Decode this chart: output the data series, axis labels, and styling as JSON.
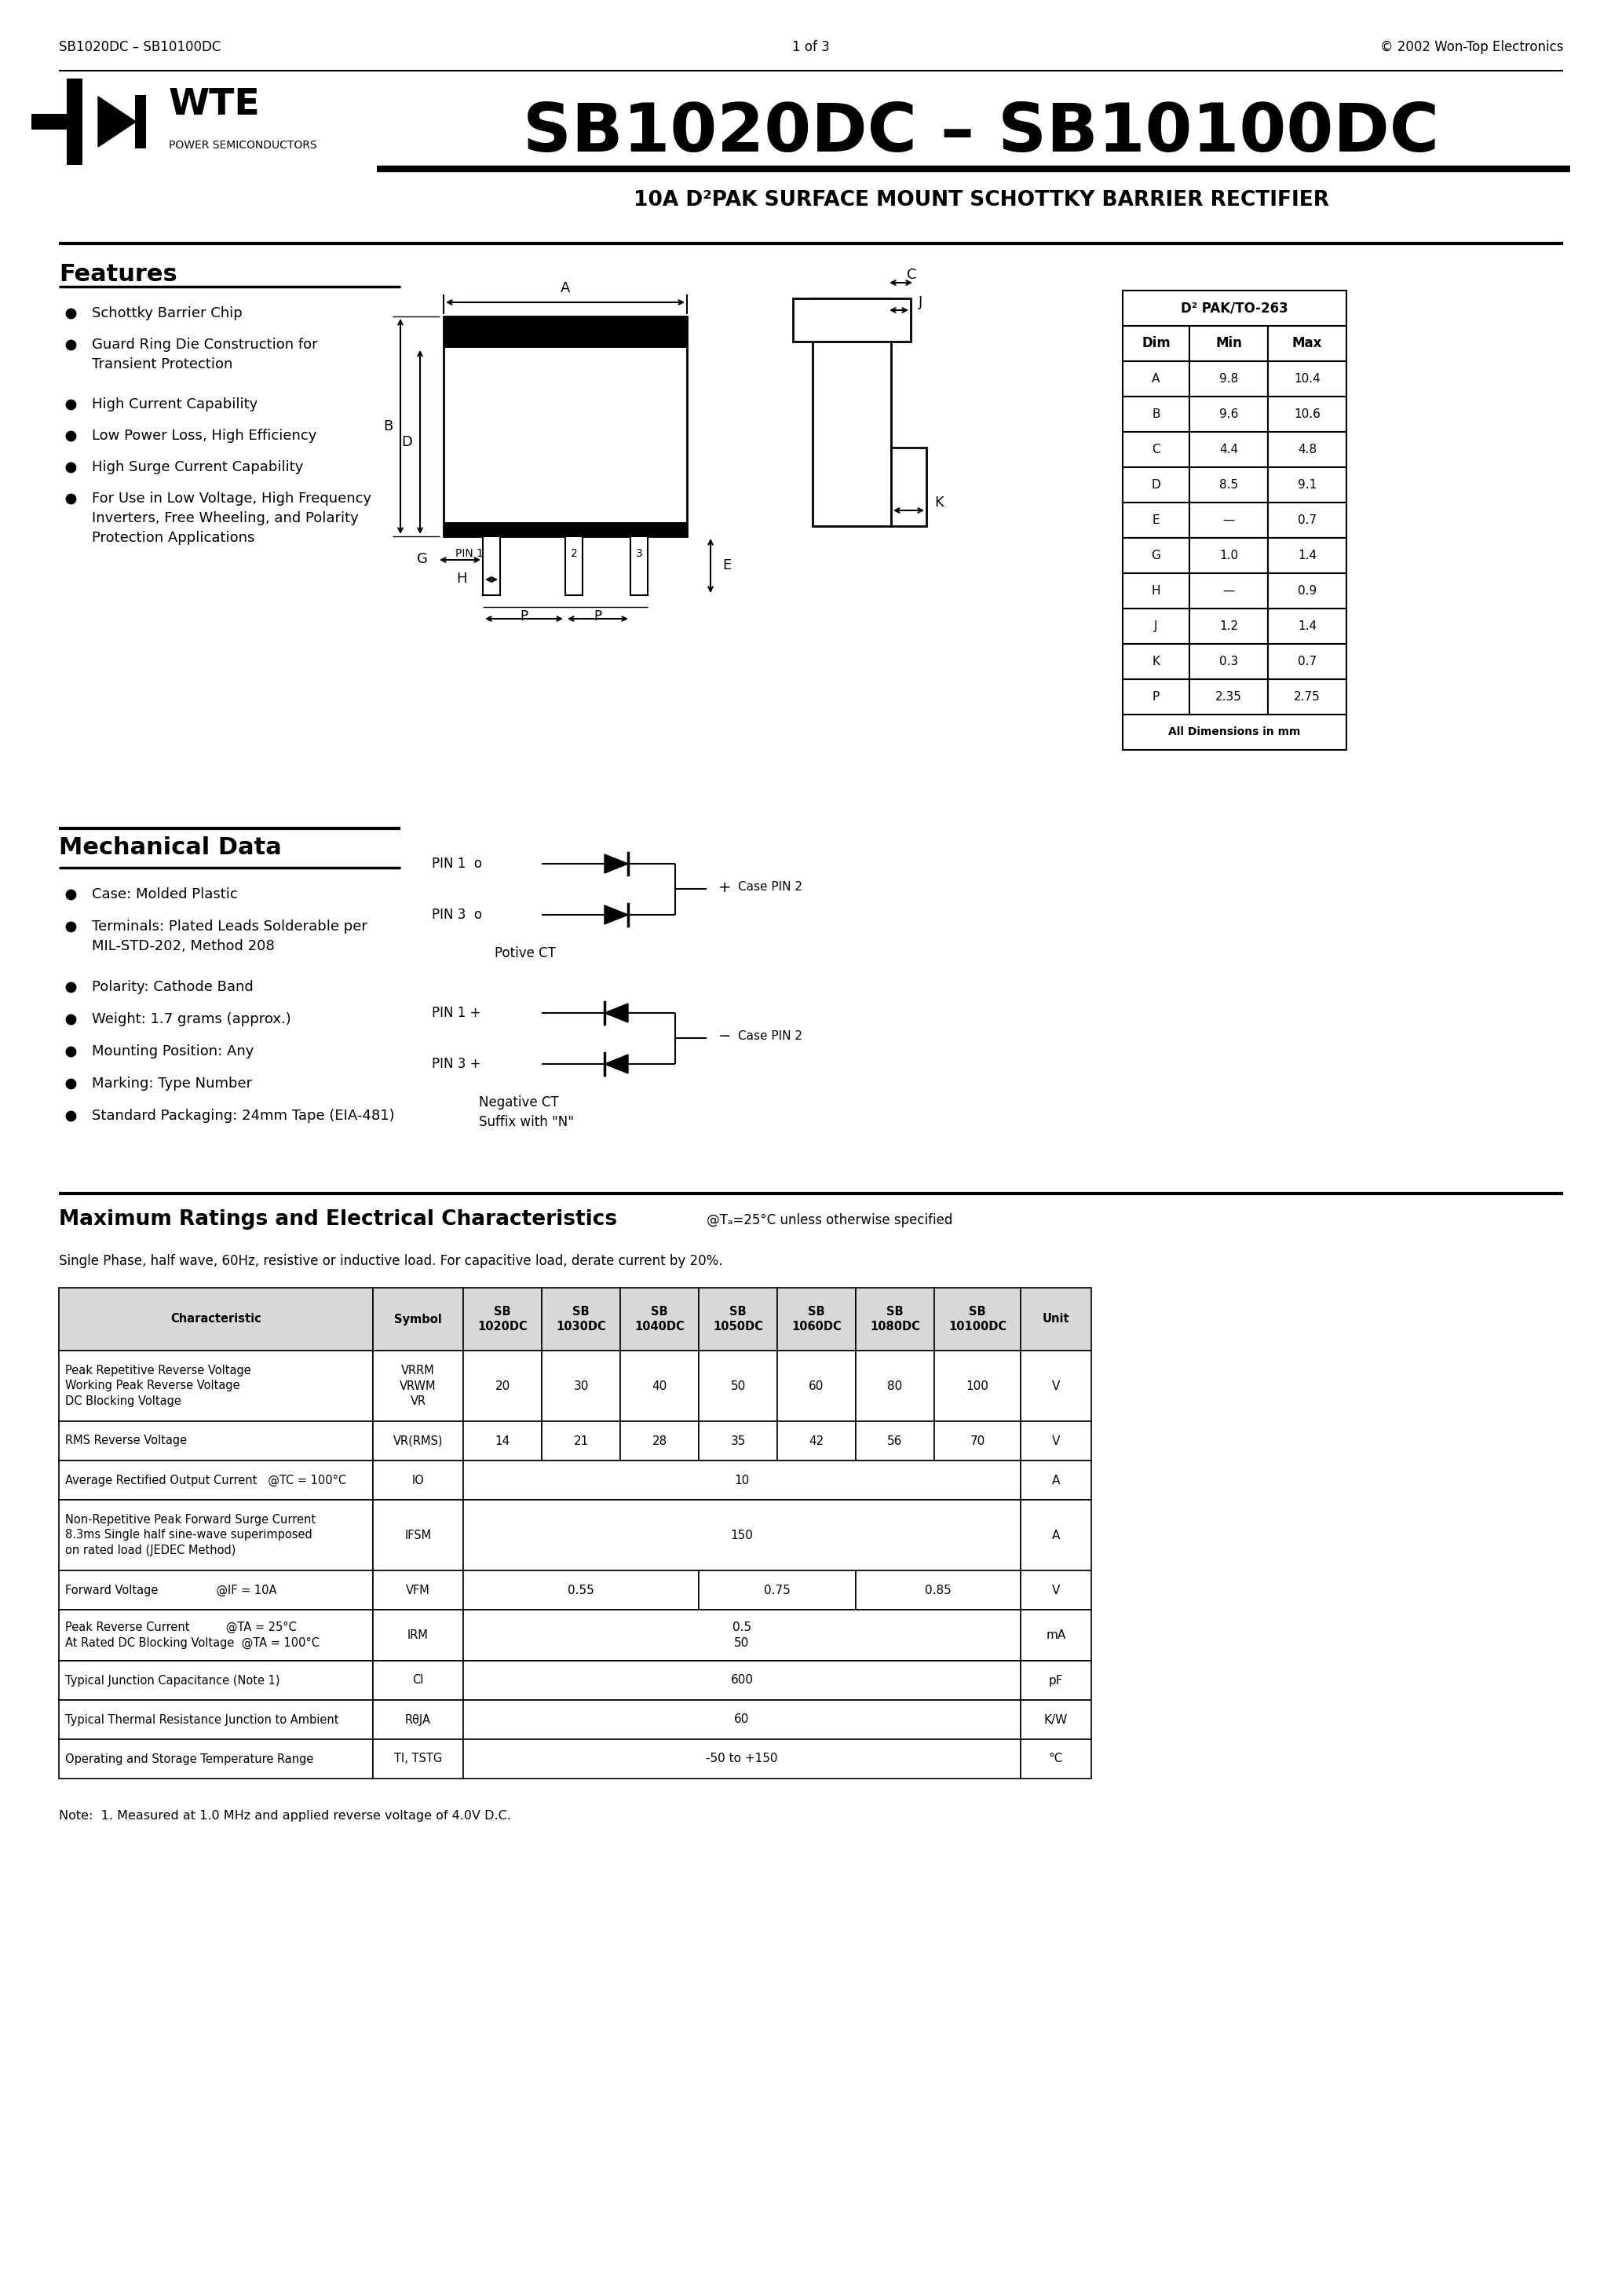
{
  "title": "SB1020DC – SB10100DC",
  "subtitle": "10A D²PAK SURFACE MOUNT SCHOTTKY BARRIER RECTIFIER",
  "company": "WTE",
  "company_sub": "POWER SEMICONDUCTORS",
  "features_title": "Features",
  "mech_title": "Mechanical Data",
  "dim_table_title": "D² PAK/TO-263",
  "dim_headers": [
    "Dim",
    "Min",
    "Max"
  ],
  "dim_rows": [
    [
      "A",
      "9.8",
      "10.4"
    ],
    [
      "B",
      "9.6",
      "10.6"
    ],
    [
      "C",
      "4.4",
      "4.8"
    ],
    [
      "D",
      "8.5",
      "9.1"
    ],
    [
      "E",
      "—",
      "0.7"
    ],
    [
      "G",
      "1.0",
      "1.4"
    ],
    [
      "H",
      "—",
      "0.9"
    ],
    [
      "J",
      "1.2",
      "1.4"
    ],
    [
      "K",
      "0.3",
      "0.7"
    ],
    [
      "P",
      "2.35",
      "2.75"
    ]
  ],
  "dim_footer": "All Dimensions in mm",
  "ratings_title": "Maximum Ratings and Electrical Characteristics",
  "ratings_note": "@Tₐ=25°C unless otherwise specified",
  "ratings_desc": "Single Phase, half wave, 60Hz, resistive or inductive load. For capacitive load, derate current by 20%.",
  "table_headers": [
    "Characteristic",
    "Symbol",
    "SB\n1020DC",
    "SB\n1030DC",
    "SB\n1040DC",
    "SB\n1050DC",
    "SB\n1060DC",
    "SB\n1080DC",
    "SB\n10100DC",
    "Unit"
  ],
  "table_rows": [
    {
      "char": "Peak Repetitive Reverse Voltage\nWorking Peak Reverse Voltage\nDC Blocking Voltage",
      "sym": "VRRM\nVRWM\nVR",
      "vals": [
        "20",
        "30",
        "40",
        "50",
        "60",
        "80",
        "100"
      ],
      "unit": "V",
      "merge": false
    },
    {
      "char": "RMS Reverse Voltage",
      "sym": "VR(RMS)",
      "vals": [
        "14",
        "21",
        "28",
        "35",
        "42",
        "56",
        "70"
      ],
      "unit": "V",
      "merge": false
    },
    {
      "char": "Average Rectified Output Current   @TC = 100°C",
      "sym": "IO",
      "vals": [
        "10"
      ],
      "unit": "A",
      "merge": true
    },
    {
      "char": "Non-Repetitive Peak Forward Surge Current\n8.3ms Single half sine-wave superimposed\non rated load (JEDEC Method)",
      "sym": "IFSM",
      "vals": [
        "150"
      ],
      "unit": "A",
      "merge": true
    },
    {
      "char": "Forward Voltage                @IF = 10A",
      "sym": "VFM",
      "vals": [
        "0.55",
        "0.75",
        "0.85"
      ],
      "unit": "V",
      "merge": "vfm"
    },
    {
      "char": "Peak Reverse Current          @TA = 25°C\nAt Rated DC Blocking Voltage  @TA = 100°C",
      "sym": "IRM",
      "vals": [
        "0.5\n50"
      ],
      "unit": "mA",
      "merge": true
    },
    {
      "char": "Typical Junction Capacitance (Note 1)",
      "sym": "CI",
      "vals": [
        "600"
      ],
      "unit": "pF",
      "merge": true
    },
    {
      "char": "Typical Thermal Resistance Junction to Ambient",
      "sym": "RθJA",
      "vals": [
        "60"
      ],
      "unit": "K/W",
      "merge": true
    },
    {
      "char": "Operating and Storage Temperature Range",
      "sym": "TI, TSTG",
      "vals": [
        "-50 to +150"
      ],
      "unit": "°C",
      "merge": true
    }
  ],
  "note": "Note:  1. Measured at 1.0 MHz and applied reverse voltage of 4.0V D.C.",
  "footer_left": "SB1020DC – SB10100DC",
  "footer_center": "1 of 3",
  "footer_right": "© 2002 Won-Top Electronics",
  "bg_color": "#ffffff"
}
